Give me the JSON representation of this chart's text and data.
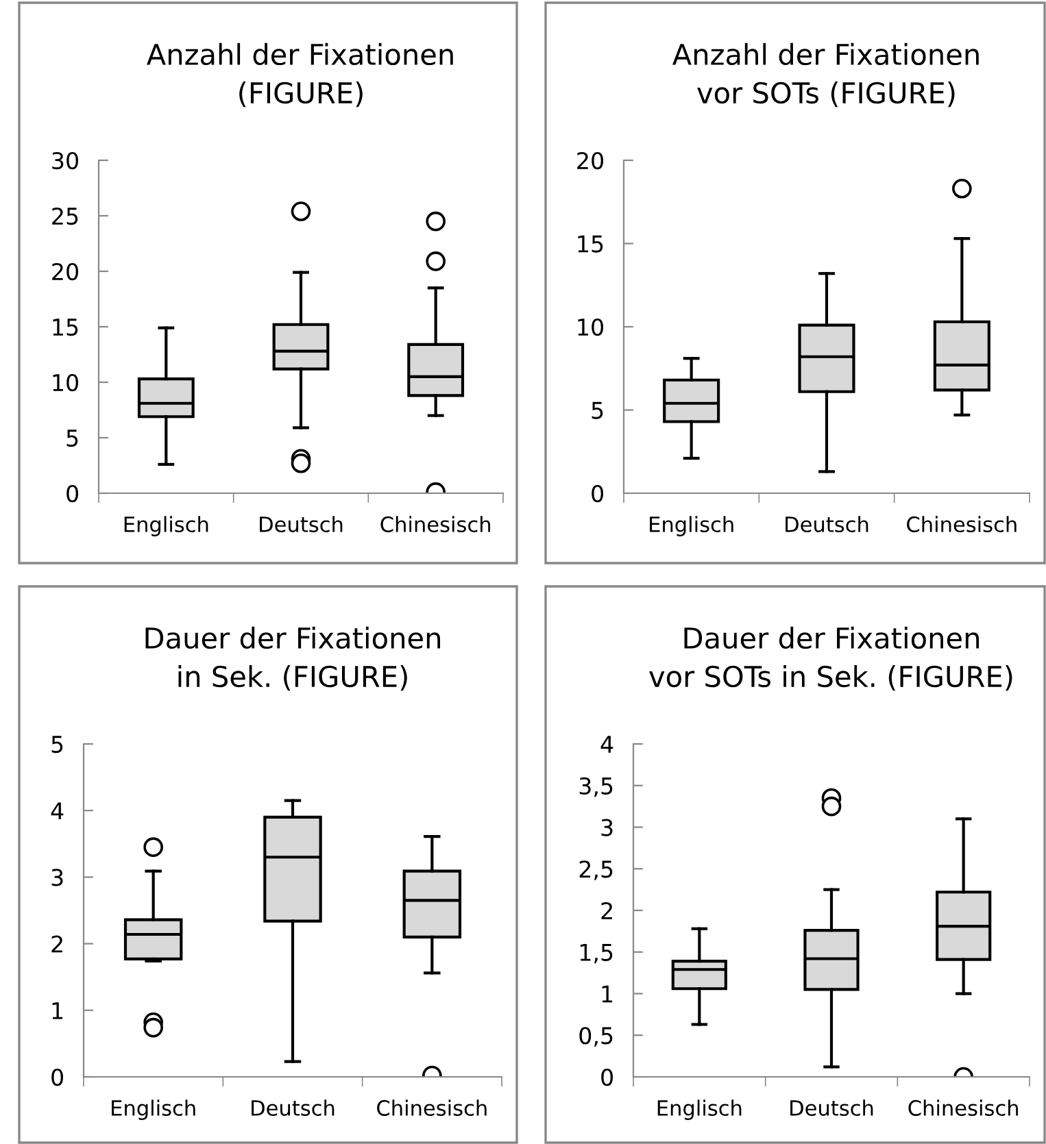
{
  "chart_data": [
    {
      "type": "box",
      "title": "Anzahl der Fixationen\n(FIGURE)",
      "categories": [
        "Englisch",
        "Deutsch",
        "Chinesisch"
      ],
      "color": "#d9d9d9",
      "ylim": [
        0,
        30
      ],
      "yticks": [
        0,
        5,
        10,
        15,
        20,
        25,
        30
      ],
      "grid": false,
      "marker": "circle",
      "boxes": [
        {
          "low": 2.6,
          "q1": 6.9,
          "median": 8.1,
          "q3": 10.3,
          "high": 14.9
        },
        {
          "low": 5.9,
          "q1": 11.2,
          "median": 12.8,
          "q3": 15.2,
          "high": 19.9,
          "outliers": [
            25.4,
            3.1,
            2.7
          ]
        },
        {
          "low": 7.0,
          "q1": 8.8,
          "median": 10.5,
          "q3": 13.4,
          "high": 18.5,
          "outliers": [
            24.5,
            20.9,
            0.1
          ]
        }
      ]
    },
    {
      "type": "box",
      "title": "Anzahl der Fixationen\nvor SOTs (FIGURE)",
      "categories": [
        "Englisch",
        "Deutsch",
        "Chinesisch"
      ],
      "color": "#d9d9d9",
      "ylim": [
        0,
        20
      ],
      "yticks": [
        0,
        5,
        10,
        15,
        20
      ],
      "grid": false,
      "marker": "circle",
      "boxes": [
        {
          "low": 2.1,
          "q1": 4.3,
          "median": 5.4,
          "q3": 6.8,
          "high": 8.1
        },
        {
          "low": 1.3,
          "q1": 6.1,
          "median": 8.2,
          "q3": 10.1,
          "high": 13.2
        },
        {
          "low": 4.7,
          "q1": 6.2,
          "median": 7.7,
          "q3": 10.3,
          "high": 15.3,
          "outliers": [
            18.3
          ]
        }
      ]
    },
    {
      "type": "box",
      "title": "Dauer der Fixationen\nin Sek. (FIGURE)",
      "categories": [
        "Englisch",
        "Deutsch",
        "Chinesisch"
      ],
      "color": "#d9d9d9",
      "ylim": [
        0,
        5
      ],
      "yticks": [
        0,
        1,
        2,
        3,
        4,
        5
      ],
      "grid": false,
      "marker": "circle",
      "boxes": [
        {
          "low": 1.74,
          "q1": 1.77,
          "median": 2.14,
          "q3": 2.36,
          "high": 3.09,
          "outliers": [
            3.45,
            0.82,
            0.74
          ]
        },
        {
          "low": 0.23,
          "q1": 2.34,
          "median": 3.3,
          "q3": 3.9,
          "high": 4.15
        },
        {
          "low": 1.56,
          "q1": 2.1,
          "median": 2.65,
          "q3": 3.09,
          "high": 3.61,
          "outliers": [
            0.02
          ]
        }
      ]
    },
    {
      "type": "box",
      "title": "Dauer der Fixationen\nvor SOTs in Sek. (FIGURE)",
      "categories": [
        "Englisch",
        "Deutsch",
        "Chinesisch"
      ],
      "color": "#d9d9d9",
      "ylim": [
        0,
        4
      ],
      "yticks": [
        0,
        {
          "value": 0.5,
          "label": "0,5"
        },
        1,
        {
          "value": 1.5,
          "label": "1,5"
        },
        2,
        {
          "value": 2.5,
          "label": "2,5"
        },
        3,
        {
          "value": 3.5,
          "label": "3,5"
        },
        4
      ],
      "grid": false,
      "marker": "circle",
      "boxes": [
        {
          "low": 0.63,
          "q1": 1.06,
          "median": 1.29,
          "q3": 1.39,
          "high": 1.78
        },
        {
          "low": 0.12,
          "q1": 1.05,
          "median": 1.42,
          "q3": 1.76,
          "high": 2.25,
          "outliers": [
            3.35,
            3.25
          ]
        },
        {
          "low": 1.0,
          "q1": 1.41,
          "median": 1.81,
          "q3": 2.22,
          "high": 3.1,
          "outliers": [
            0.0
          ]
        }
      ]
    }
  ]
}
